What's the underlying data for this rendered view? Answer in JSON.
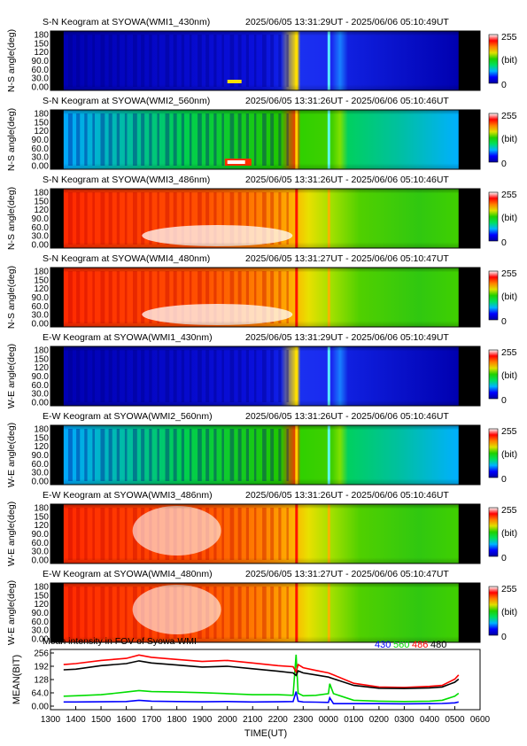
{
  "keogram": {
    "panels": [
      {
        "title": "S-N Keogram at SYOWA(WMI1_430nm)",
        "time_range": "2025/06/05 13:31:29UT - 2025/06/06 05:10:49UT",
        "ylabel": "N-S angle(deg)",
        "profile": "blue",
        "extra": "green_spot"
      },
      {
        "title": "S-N Keogram at SYOWA(WMI2_560nm)",
        "time_range": "2025/06/05 13:31:26UT - 2025/06/06 05:10:46UT",
        "ylabel": "N-S angle(deg)",
        "profile": "green",
        "extra": "red_spot"
      },
      {
        "title": "S-N Keogram at SYOWA(WMI3_486nm)",
        "time_range": "2025/06/05 13:31:26UT - 2025/06/06 05:10:46UT",
        "ylabel": "N-S angle(deg)",
        "profile": "hot",
        "extra": "white_low"
      },
      {
        "title": "S-N Keogram at SYOWA(WMI4_480nm)",
        "time_range": "2025/06/05 13:31:27UT - 2025/06/06 05:10:47UT",
        "ylabel": "N-S angle(deg)",
        "profile": "hot",
        "extra": "white_low"
      },
      {
        "title": "E-W Keogram at SYOWA(WMI1_430nm)",
        "time_range": "2025/06/05 13:31:29UT - 2025/06/06 05:10:49UT",
        "ylabel": "W-E angle(deg)",
        "profile": "blue",
        "extra": ""
      },
      {
        "title": "E-W Keogram at SYOWA(WMI2_560nm)",
        "time_range": "2025/06/05 13:31:26UT - 2025/06/06 05:10:46UT",
        "ylabel": "W-E angle(deg)",
        "profile": "green",
        "extra": ""
      },
      {
        "title": "E-W Keogram at SYOWA(WMI3_486nm)",
        "time_range": "2025/06/05 13:31:26UT - 2025/06/06 05:10:46UT",
        "ylabel": "W-E angle(deg)",
        "profile": "hot",
        "extra": "white_mid"
      },
      {
        "title": "E-W Keogram at SYOWA(WMI4_480nm)",
        "time_range": "2025/06/05 13:31:27UT - 2025/06/06 05:10:47UT",
        "ylabel": "W-E angle(deg)",
        "profile": "hot",
        "extra": "white_mid"
      }
    ],
    "ytick_labels": [
      "180",
      "150",
      "120",
      "90.0",
      "60.0",
      "30.0",
      "0.00"
    ],
    "ytick_values": [
      180,
      150,
      120,
      90,
      60,
      30,
      0
    ],
    "colorbar": {
      "max_label": "255",
      "unit_label": "(bit)",
      "min_label": "0"
    },
    "colormap": [
      "#0000a0",
      "#0000ff",
      "#00b4ff",
      "#00e060",
      "#20d000",
      "#e0e000",
      "#ff8000",
      "#ff0000",
      "#ffffff"
    ],
    "substorm_hours": [
      22.72,
      24.0
    ]
  },
  "chart_data": {
    "type": "line",
    "title": "Mean intensity in FOV of Syowa WMI",
    "xlabel": "TIME(UT)",
    "ylabel": "MEAN(BIT)",
    "xlim": [
      13,
      30
    ],
    "ylim": [
      0,
      256
    ],
    "yticks": [
      0,
      64,
      128,
      192,
      256
    ],
    "ytick_labels": [
      "0.00",
      "64.0",
      "128",
      "192",
      "256"
    ],
    "xtick_labels": [
      "1300",
      "1400",
      "1500",
      "1600",
      "1700",
      "1800",
      "1900",
      "2000",
      "2100",
      "2200",
      "2300",
      "0000",
      "0100",
      "0200",
      "0300",
      "0400",
      "0500",
      "0600"
    ],
    "series": [
      {
        "name": "430",
        "color": "#0000ff",
        "x": [
          13.52,
          14,
          15,
          16,
          16.5,
          17,
          18,
          19,
          20,
          21,
          22,
          22.6,
          22.72,
          22.8,
          23,
          23.5,
          24,
          24.05,
          24.2,
          25,
          26,
          27,
          28,
          28.5,
          29,
          29.15
        ],
        "y": [
          20,
          20,
          21,
          22,
          28,
          24,
          22,
          21,
          22,
          20,
          21,
          22,
          70,
          24,
          20,
          19,
          18,
          40,
          12,
          12,
          12,
          11,
          12,
          13,
          16,
          20
        ]
      },
      {
        "name": "560",
        "color": "#00dd00",
        "x": [
          13.52,
          14,
          15,
          16,
          16.5,
          17,
          18,
          19,
          20,
          21,
          22,
          22.6,
          22.72,
          22.8,
          23,
          23.5,
          24,
          24.05,
          24.2,
          25,
          26,
          27,
          28,
          28.5,
          29,
          29.15
        ],
        "y": [
          48,
          50,
          55,
          68,
          75,
          70,
          68,
          65,
          60,
          55,
          55,
          52,
          248,
          62,
          50,
          52,
          60,
          108,
          60,
          28,
          24,
          22,
          24,
          28,
          48,
          62
        ]
      },
      {
        "name": "486",
        "color": "#ff0000",
        "x": [
          13.52,
          14,
          15,
          16,
          16.5,
          17,
          18,
          19,
          20,
          21,
          22,
          22.6,
          22.72,
          22.8,
          23,
          23.5,
          24,
          24.2,
          25,
          26,
          27,
          28,
          28.5,
          29,
          29.15
        ],
        "y": [
          200,
          205,
          220,
          230,
          246,
          235,
          225,
          215,
          220,
          208,
          195,
          190,
          165,
          200,
          185,
          172,
          160,
          150,
          110,
          92,
          90,
          95,
          100,
          130,
          150
        ]
      },
      {
        "name": "480",
        "color": "#000000",
        "x": [
          13.52,
          14,
          15,
          16,
          16.5,
          17,
          18,
          19,
          20,
          21,
          22,
          22.6,
          22.72,
          22.8,
          23,
          23.5,
          24,
          24.2,
          25,
          26,
          27,
          28,
          28.5,
          29,
          29.15
        ],
        "y": [
          175,
          178,
          195,
          205,
          218,
          208,
          198,
          188,
          192,
          180,
          168,
          160,
          148,
          170,
          160,
          150,
          140,
          132,
          100,
          86,
          85,
          88,
          92,
          115,
          130
        ]
      }
    ]
  }
}
